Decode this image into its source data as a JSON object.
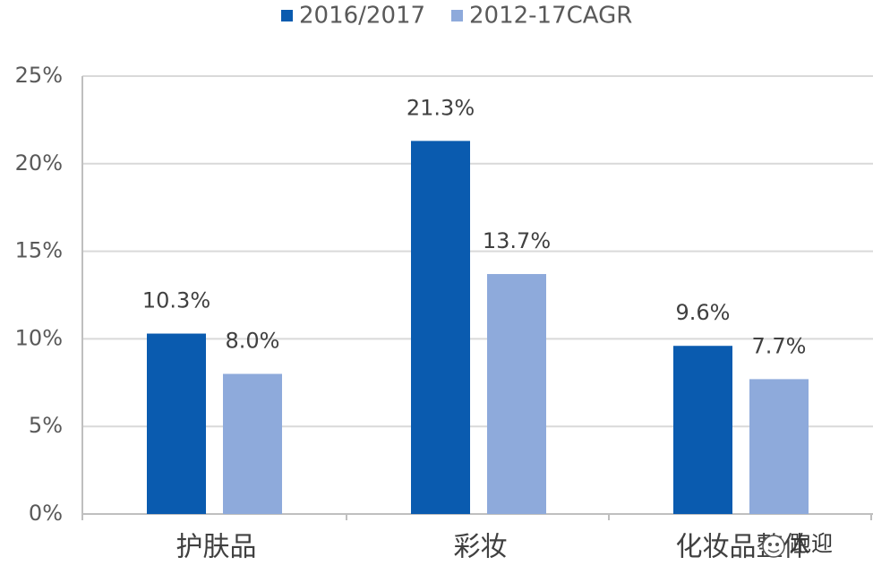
{
  "chart_data": {
    "type": "bar",
    "categories": [
      "护肤品",
      "彩妆",
      "化妆品整体"
    ],
    "series": [
      {
        "name": "2016/2017",
        "values": [
          10.3,
          21.3,
          9.6
        ],
        "labels": [
          "10.3%",
          "21.3%",
          "9.6%"
        ],
        "color": "#0A5BAF"
      },
      {
        "name": "2012-17CAGR",
        "values": [
          8.0,
          13.7,
          7.7
        ],
        "labels": [
          "8.0%",
          "13.7%",
          "7.7%"
        ],
        "color": "#8EAADB"
      }
    ],
    "ylim": [
      0,
      25
    ],
    "yticks": [
      0,
      5,
      10,
      15,
      20,
      25
    ],
    "ytick_labels": [
      "0%",
      "5%",
      "10%",
      "15%",
      "20%",
      "25%"
    ],
    "grid": true,
    "legend": "top-center",
    "grid_color": "#d9d9d9",
    "axis_color": "#bfbfbf"
  },
  "watermark": {
    "text": "跑迎",
    "icon": "wechat-icon"
  }
}
